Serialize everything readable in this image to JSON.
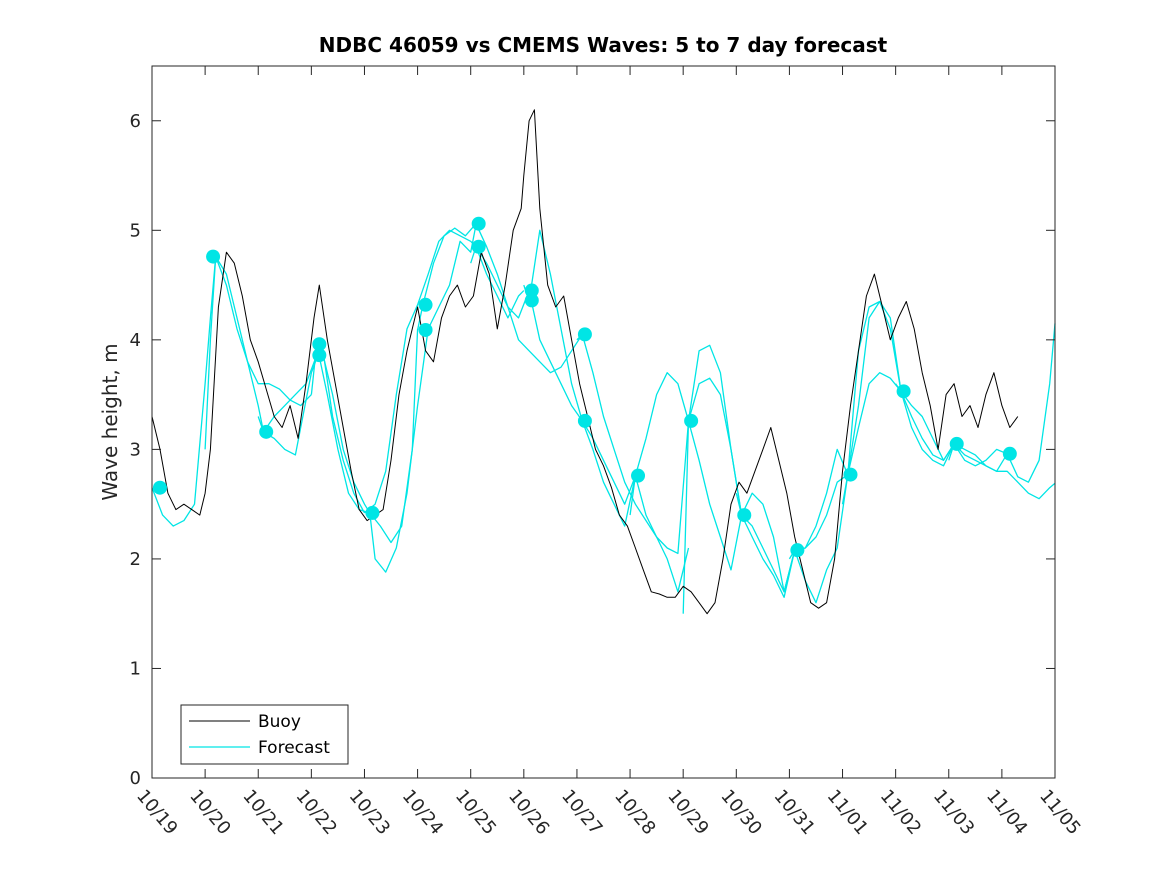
{
  "chart_data": {
    "type": "line",
    "title": "NDBC 46059 vs CMEMS Waves: 5 to 7 day forecast",
    "xlabel": "",
    "ylabel": "Wave height, m",
    "xlim_days": [
      0,
      17
    ],
    "ylim": [
      0,
      6.5
    ],
    "x_ticks": [
      "10/19",
      "10/20",
      "10/21",
      "10/22",
      "10/23",
      "10/24",
      "10/25",
      "10/26",
      "10/27",
      "10/28",
      "10/29",
      "10/30",
      "10/31",
      "11/01",
      "11/02",
      "11/03",
      "11/04",
      "11/05"
    ],
    "y_ticks": [
      0,
      1,
      2,
      3,
      4,
      5,
      6
    ],
    "legend": {
      "position": "bottom-left",
      "entries": [
        "Buoy",
        "Forecast"
      ]
    },
    "colors": {
      "buoy": "#000000",
      "forecast": "#00e5e5",
      "axis": "#262626"
    },
    "buoy": {
      "name": "Buoy",
      "x": [
        0,
        0.15,
        0.3,
        0.45,
        0.6,
        0.75,
        0.9,
        1.0,
        1.1,
        1.25,
        1.4,
        1.55,
        1.7,
        1.85,
        2.0,
        2.15,
        2.3,
        2.45,
        2.6,
        2.75,
        2.9,
        3.05,
        3.15,
        3.3,
        3.45,
        3.6,
        3.75,
        3.9,
        4.05,
        4.2,
        4.35,
        4.5,
        4.65,
        4.8,
        4.95,
        5.0,
        5.15,
        5.3,
        5.45,
        5.6,
        5.75,
        5.9,
        6.05,
        6.2,
        6.35,
        6.5,
        6.65,
        6.8,
        6.95,
        7.0,
        7.1,
        7.2,
        7.3,
        7.45,
        7.6,
        7.75,
        7.9,
        8.05,
        8.2,
        8.35,
        8.5,
        8.65,
        8.8,
        8.95,
        9.1,
        9.25,
        9.4,
        9.55,
        9.7,
        9.85,
        10.0,
        10.15,
        10.3,
        10.45,
        10.6,
        10.75,
        10.9,
        11.05,
        11.2,
        11.35,
        11.5,
        11.65,
        11.8,
        11.95,
        12.1,
        12.25,
        12.4,
        12.55,
        12.7,
        12.85,
        13.0,
        13.15,
        13.3,
        13.45,
        13.6,
        13.75,
        13.9,
        14.05,
        14.2,
        14.35,
        14.5,
        14.65,
        14.8,
        14.95,
        15.1,
        15.25,
        15.4,
        15.55,
        15.7,
        15.85,
        16.0,
        16.15,
        16.3
      ],
      "values": [
        3.3,
        3.0,
        2.6,
        2.45,
        2.5,
        2.45,
        2.4,
        2.6,
        3.0,
        4.3,
        4.8,
        4.7,
        4.4,
        4.0,
        3.8,
        3.55,
        3.3,
        3.2,
        3.4,
        3.1,
        3.6,
        4.2,
        4.5,
        4.0,
        3.6,
        3.2,
        2.8,
        2.45,
        2.35,
        2.4,
        2.45,
        2.9,
        3.5,
        3.9,
        4.2,
        4.3,
        3.9,
        3.8,
        4.2,
        4.4,
        4.5,
        4.3,
        4.4,
        4.8,
        4.6,
        4.1,
        4.5,
        5.0,
        5.2,
        5.5,
        6.0,
        6.1,
        5.2,
        4.5,
        4.3,
        4.4,
        4.0,
        3.6,
        3.3,
        3.0,
        2.85,
        2.65,
        2.4,
        2.3,
        2.1,
        1.9,
        1.7,
        1.68,
        1.65,
        1.65,
        1.75,
        1.7,
        1.6,
        1.5,
        1.6,
        2.0,
        2.5,
        2.7,
        2.6,
        2.8,
        3.0,
        3.2,
        2.9,
        2.6,
        2.2,
        1.9,
        1.6,
        1.55,
        1.6,
        2.0,
        2.8,
        3.4,
        3.9,
        4.4,
        4.6,
        4.3,
        4.0,
        4.2,
        4.35,
        4.1,
        3.7,
        3.4,
        3.0,
        3.5,
        3.6,
        3.3,
        3.4,
        3.2,
        3.5,
        3.7,
        3.4,
        3.2,
        3.3
      ]
    },
    "forecast_runs": [
      {
        "name": "Forecast",
        "x": [
          0,
          0.2,
          0.4,
          0.6,
          0.8,
          1.0,
          1.1,
          1.2,
          1.4,
          1.6,
          1.8,
          2.0,
          2.2,
          2.4,
          2.6,
          2.8,
          3.0
        ],
        "values": [
          2.65,
          2.4,
          2.3,
          2.35,
          2.5,
          3.6,
          4.2,
          4.76,
          4.5,
          4.1,
          3.8,
          3.6,
          3.6,
          3.55,
          3.45,
          3.4,
          3.5
        ]
      },
      {
        "name": "Forecast",
        "x": [
          1.0,
          1.1,
          1.2,
          1.4,
          1.6,
          1.8,
          2.0,
          2.1,
          2.3,
          2.5,
          2.7,
          2.8,
          3.0,
          3.2,
          3.4,
          3.6,
          3.8,
          4.0
        ],
        "values": [
          3.0,
          4.0,
          4.76,
          4.6,
          4.2,
          3.8,
          3.4,
          3.16,
          3.1,
          3.0,
          2.95,
          3.2,
          3.7,
          3.96,
          3.3,
          2.9,
          2.6,
          2.42
        ]
      },
      {
        "name": "Forecast",
        "x": [
          2.0,
          2.1,
          2.3,
          2.5,
          2.7,
          2.9,
          3.1,
          3.2,
          3.4,
          3.6,
          3.8,
          4.0,
          4.1,
          4.3,
          4.5,
          4.7,
          4.9,
          5.0
        ],
        "values": [
          3.3,
          3.16,
          3.3,
          3.4,
          3.5,
          3.6,
          3.86,
          3.9,
          3.5,
          3.0,
          2.7,
          2.5,
          2.42,
          2.3,
          2.15,
          2.3,
          3.0,
          4.1
        ]
      },
      {
        "name": "Forecast",
        "x": [
          3.0,
          3.1,
          3.3,
          3.5,
          3.7,
          3.9,
          4.1,
          4.2,
          4.4,
          4.6,
          4.8,
          5.0,
          5.2,
          5.4,
          5.6,
          5.8,
          6.0,
          6.1
        ],
        "values": [
          3.5,
          3.96,
          3.5,
          3.0,
          2.6,
          2.45,
          2.42,
          2.0,
          1.88,
          2.1,
          2.6,
          3.4,
          4.1,
          4.3,
          4.5,
          4.9,
          4.8,
          5.05
        ]
      },
      {
        "name": "Forecast",
        "x": [
          4.0,
          4.2,
          4.4,
          4.6,
          4.8,
          5.0,
          5.2,
          5.4,
          5.6,
          5.8,
          6.0,
          6.1,
          6.3,
          6.5,
          6.7,
          6.9,
          7.0
        ],
        "values": [
          2.42,
          2.5,
          2.8,
          3.5,
          4.1,
          4.32,
          4.6,
          4.9,
          5.0,
          4.95,
          4.9,
          4.85,
          4.6,
          4.4,
          4.2,
          4.4,
          4.45
        ]
      },
      {
        "name": "Forecast",
        "x": [
          5.0,
          5.1,
          5.3,
          5.5,
          5.7,
          5.9,
          6.1,
          6.3,
          6.5,
          6.7,
          6.9,
          7.1,
          7.3,
          7.5,
          7.7,
          7.9,
          8.1
        ],
        "values": [
          4.09,
          4.32,
          4.7,
          4.95,
          5.02,
          4.95,
          5.06,
          4.85,
          4.6,
          4.3,
          4.0,
          3.9,
          3.8,
          3.7,
          3.75,
          3.9,
          4.05
        ]
      },
      {
        "name": "Forecast",
        "x": [
          6.0,
          6.1,
          6.3,
          6.5,
          6.7,
          6.9,
          7.1,
          7.3,
          7.5,
          7.7,
          7.9,
          8.1,
          8.3,
          8.5,
          8.7,
          8.9,
          9.1
        ],
        "values": [
          4.7,
          4.85,
          4.7,
          4.5,
          4.3,
          4.2,
          4.45,
          4.0,
          3.8,
          3.6,
          3.4,
          3.26,
          3.0,
          2.7,
          2.5,
          2.3,
          2.76
        ]
      },
      {
        "name": "Forecast",
        "x": [
          7.0,
          7.1,
          7.3,
          7.5,
          7.7,
          7.9,
          8.1,
          8.3,
          8.5,
          8.7,
          8.9,
          9.1,
          9.3,
          9.5,
          9.7,
          9.9,
          10.1
        ],
        "values": [
          4.5,
          4.35,
          5.0,
          4.6,
          4.1,
          3.6,
          3.26,
          3.1,
          2.9,
          2.7,
          2.5,
          2.76,
          2.4,
          2.2,
          2.0,
          1.7,
          2.1
        ]
      },
      {
        "name": "Forecast",
        "x": [
          8.0,
          8.1,
          8.3,
          8.5,
          8.7,
          8.9,
          9.1,
          9.3,
          9.5,
          9.7,
          9.9,
          10.1,
          10.3,
          10.5,
          10.7,
          10.9,
          11.1
        ],
        "values": [
          4.0,
          4.05,
          3.7,
          3.3,
          3.0,
          2.7,
          2.5,
          2.35,
          2.2,
          2.1,
          2.05,
          3.26,
          3.9,
          3.95,
          3.7,
          3.0,
          2.4
        ]
      },
      {
        "name": "Forecast",
        "x": [
          9.0,
          9.1,
          9.3,
          9.5,
          9.7,
          9.9,
          10.1,
          10.3,
          10.5,
          10.7,
          10.9,
          11.1,
          11.3,
          11.5,
          11.7,
          11.9,
          12.1
        ],
        "values": [
          2.4,
          2.76,
          3.1,
          3.5,
          3.7,
          3.6,
          3.26,
          2.9,
          2.5,
          2.2,
          1.9,
          2.4,
          2.6,
          2.5,
          2.2,
          1.7,
          2.08
        ]
      },
      {
        "name": "Forecast",
        "x": [
          10.0,
          10.1,
          10.3,
          10.5,
          10.7,
          10.9,
          11.1,
          11.3,
          11.5,
          11.7,
          11.9,
          12.1,
          12.3,
          12.5,
          12.7,
          12.9,
          13.1
        ],
        "values": [
          1.5,
          3.26,
          3.6,
          3.65,
          3.5,
          3.0,
          2.4,
          2.2,
          2.0,
          1.85,
          1.65,
          2.08,
          2.1,
          2.2,
          2.4,
          2.7,
          2.77
        ]
      },
      {
        "name": "Forecast",
        "x": [
          11.0,
          11.1,
          11.3,
          11.5,
          11.7,
          11.9,
          12.1,
          12.3,
          12.5,
          12.7,
          12.9,
          13.1,
          13.3,
          13.5,
          13.7,
          13.9,
          14.1
        ],
        "values": [
          2.6,
          2.4,
          2.3,
          2.1,
          1.9,
          1.7,
          2.08,
          1.8,
          1.6,
          1.9,
          2.1,
          2.77,
          3.4,
          4.2,
          4.35,
          4.2,
          3.53
        ]
      },
      {
        "name": "Forecast",
        "x": [
          12.0,
          12.1,
          12.3,
          12.5,
          12.7,
          12.9,
          13.1,
          13.3,
          13.5,
          13.7,
          13.9,
          14.1,
          14.3,
          14.5,
          14.7,
          14.9,
          15.1
        ],
        "values": [
          2.0,
          2.08,
          2.1,
          2.3,
          2.6,
          3.0,
          2.77,
          3.2,
          3.6,
          3.7,
          3.65,
          3.53,
          3.4,
          3.3,
          3.1,
          2.9,
          3.05
        ]
      },
      {
        "name": "Forecast",
        "x": [
          13.0,
          13.1,
          13.3,
          13.5,
          13.7,
          13.9,
          14.1,
          14.3,
          14.5,
          14.7,
          14.9,
          15.1,
          15.3,
          15.5,
          15.7,
          15.9,
          16.1
        ],
        "values": [
          2.5,
          2.77,
          3.9,
          4.3,
          4.35,
          4.1,
          3.53,
          3.3,
          3.1,
          2.95,
          2.9,
          3.05,
          2.9,
          2.85,
          2.9,
          3.0,
          2.96
        ]
      },
      {
        "name": "Forecast",
        "x": [
          14.0,
          14.1,
          14.3,
          14.5,
          14.7,
          14.9,
          15.1,
          15.3,
          15.5,
          15.7,
          15.9,
          16.1,
          16.3,
          16.5,
          16.7,
          16.9,
          17.0
        ],
        "values": [
          3.6,
          3.53,
          3.2,
          3.0,
          2.9,
          2.85,
          3.05,
          3.0,
          2.95,
          2.85,
          2.8,
          2.96,
          2.75,
          2.7,
          2.9,
          3.6,
          4.15
        ]
      },
      {
        "name": "Forecast",
        "x": [
          15.0,
          15.1,
          15.3,
          15.5,
          15.7,
          15.9,
          16.1,
          16.3,
          16.5,
          16.7,
          16.9,
          17.0
        ],
        "values": [
          2.9,
          3.05,
          2.95,
          2.9,
          2.85,
          2.8,
          2.8,
          2.7,
          2.6,
          2.55,
          2.65,
          2.69
        ]
      }
    ],
    "forecast_markers": {
      "x": [
        0.15,
        1.15,
        2.15,
        3.15,
        3.15,
        4.15,
        5.15,
        5.15,
        6.15,
        6.15,
        7.15,
        7.15,
        8.15,
        8.15,
        9.15,
        10.15,
        11.15,
        12.15,
        13.15,
        14.15,
        15.15,
        16.15
      ],
      "values": [
        2.65,
        4.76,
        3.16,
        3.96,
        3.86,
        2.42,
        4.32,
        4.09,
        5.06,
        4.85,
        4.45,
        4.36,
        4.05,
        3.26,
        2.76,
        3.26,
        2.4,
        2.08,
        2.77,
        3.53,
        3.05,
        2.96
      ]
    }
  }
}
